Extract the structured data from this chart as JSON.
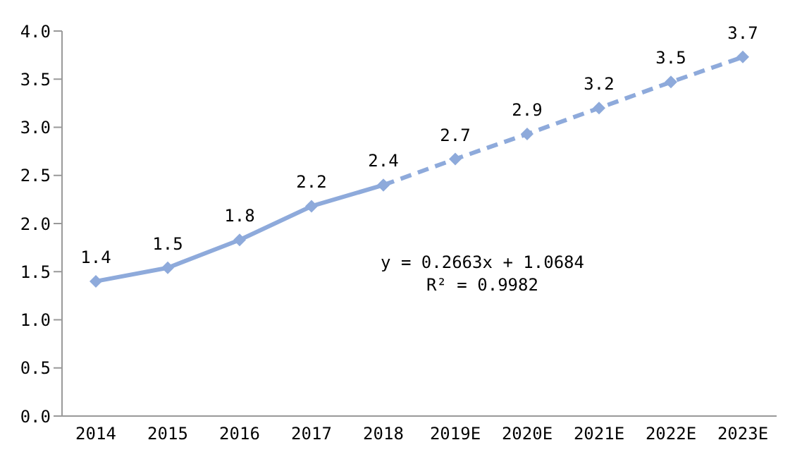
{
  "chart_data": {
    "type": "line",
    "categories": [
      "2014",
      "2015",
      "2016",
      "2017",
      "2018",
      "2019E",
      "2020E",
      "2021E",
      "2022E",
      "2023E"
    ],
    "series": [
      {
        "color": "#8eaadb",
        "line_style": "solid",
        "values": [
          1.4,
          1.54,
          1.83,
          2.18,
          2.4,
          null,
          null,
          null,
          null,
          null
        ],
        "value_labels": [
          "1.4",
          "1.5",
          "1.8",
          "2.2",
          "2.4",
          null,
          null,
          null,
          null,
          null
        ]
      },
      {
        "color": "#8eaadb",
        "line_style": "dashed",
        "values": [
          null,
          null,
          null,
          null,
          2.4,
          2.67,
          2.93,
          3.2,
          3.47,
          3.73
        ],
        "value_labels": [
          null,
          null,
          null,
          null,
          null,
          "2.7",
          "2.9",
          "3.2",
          "3.5",
          "3.7"
        ]
      }
    ],
    "ylim": [
      0,
      4
    ],
    "yticks": [
      {
        "value": 0,
        "label": "0.0"
      },
      {
        "value": 0.5,
        "label": "0.5"
      },
      {
        "value": 1,
        "label": "1.0"
      },
      {
        "value": 1.5,
        "label": "1.5"
      },
      {
        "value": 2,
        "label": "2.0"
      },
      {
        "value": 2.5,
        "label": "2.5"
      },
      {
        "value": 3,
        "label": "3.0"
      },
      {
        "value": 3.5,
        "label": "3.5"
      },
      {
        "value": 4,
        "label": "4.0"
      }
    ],
    "grid": false,
    "legend": false,
    "marker": "diamond",
    "annotations": [
      "y = 0.2663x + 1.0684",
      "R² = 0.9982"
    ]
  }
}
